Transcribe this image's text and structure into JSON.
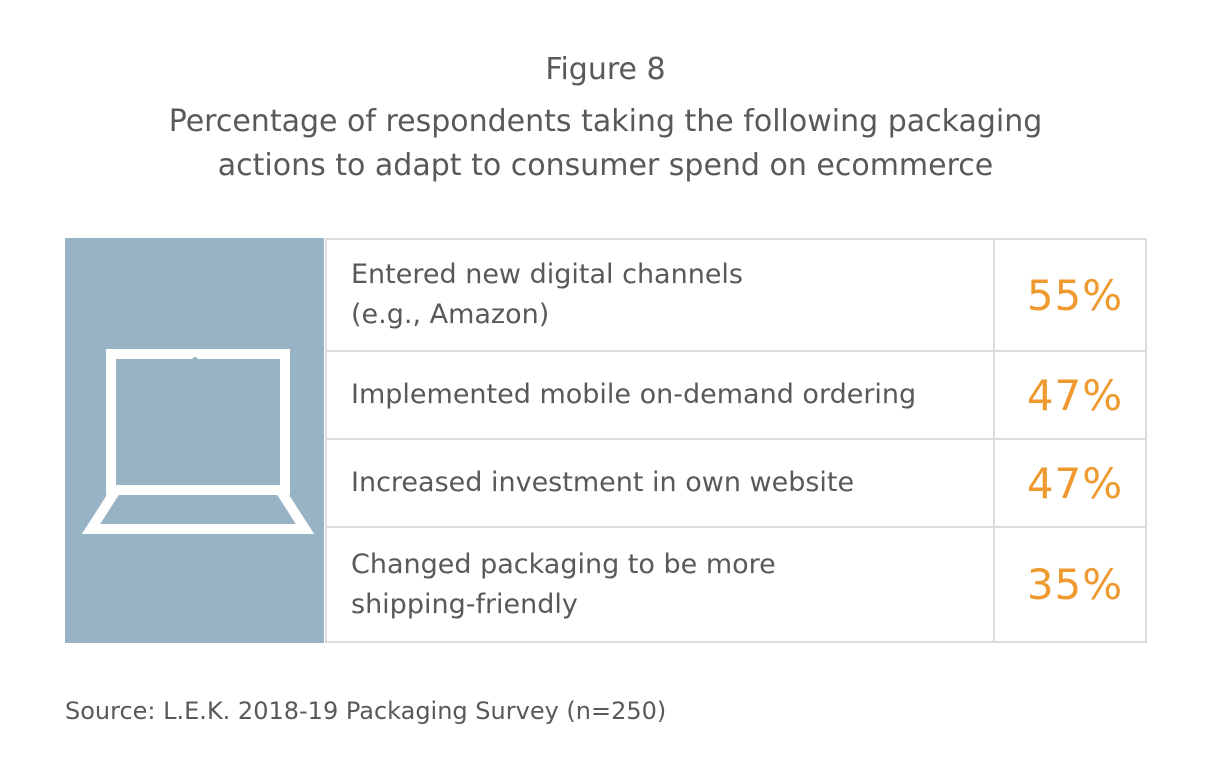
{
  "figure": {
    "label": "Figure 8",
    "title_lines": [
      "Percentage of respondents taking the following packaging",
      "actions to adapt to consumer spend on ecommerce"
    ],
    "icon": "laptop-icon",
    "source": "Source: L.E.K. 2018-19 Packaging Survey (n=250)"
  },
  "colors": {
    "icon_panel": "#98b3c3",
    "value_text": "#ee9a30",
    "body_text": "#58595b",
    "grid": "#dcdcdc"
  },
  "chart_data": {
    "type": "table",
    "title": "Percentage of respondents taking the following packaging actions to adapt to consumer spend on ecommerce",
    "rows": [
      {
        "label": "Entered new digital channels\n(e.g., Amazon)",
        "value": 55,
        "display": "55%"
      },
      {
        "label": "Implemented mobile on-demand ordering",
        "value": 47,
        "display": "47%"
      },
      {
        "label": "Increased investment in own website",
        "value": 47,
        "display": "47%"
      },
      {
        "label": "Changed packaging to be more\nshipping-friendly",
        "value": 35,
        "display": "35%"
      }
    ]
  }
}
